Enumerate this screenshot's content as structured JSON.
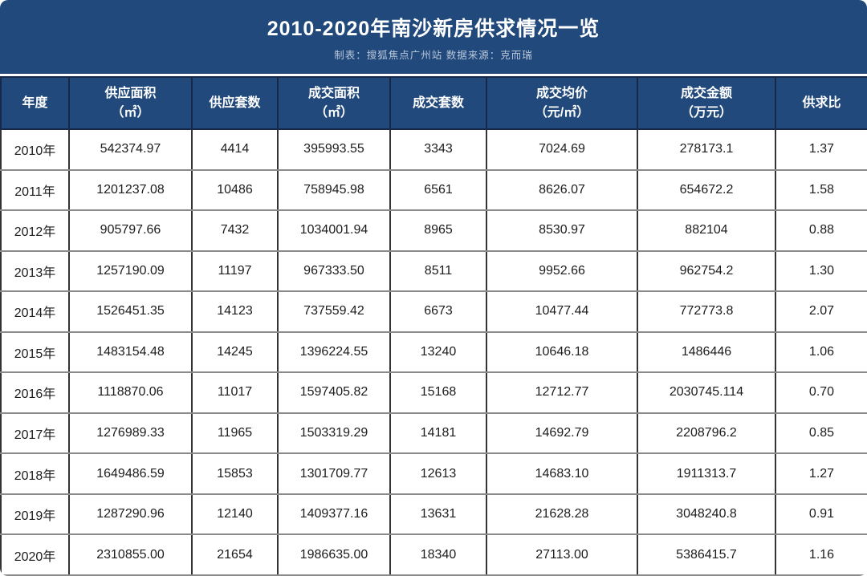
{
  "title": "2010-2020年南沙新房供求情况一览",
  "subtitle": "制表：搜狐焦点广州站  数据来源：克而瑞",
  "colors": {
    "banner_background": "#21497b",
    "header_cell_background": "#21497b",
    "header_border": "#16294a",
    "title_text": "#ffffff",
    "subtitle_text": "#b9c7db",
    "row_horizontal_border": "#8a8a8a",
    "row_vertical_border": "#333333",
    "body_text": "#1c1c1c"
  },
  "table": {
    "headers": [
      "年度",
      "供应面积\n（㎡）",
      "供应套数",
      "成交面积\n（㎡）",
      "成交套数",
      "成交均价\n（元/㎡）",
      "成交金额\n（万元）",
      "供求比"
    ],
    "rows": [
      [
        "2010年",
        "542374.97",
        "4414",
        "395993.55",
        "3343",
        "7024.69",
        "278173.1",
        "1.37"
      ],
      [
        "2011年",
        "1201237.08",
        "10486",
        "758945.98",
        "6561",
        "8626.07",
        "654672.2",
        "1.58"
      ],
      [
        "2012年",
        "905797.66",
        "7432",
        "1034001.94",
        "8965",
        "8530.97",
        "882104",
        "0.88"
      ],
      [
        "2013年",
        "1257190.09",
        "11197",
        "967333.50",
        "8511",
        "9952.66",
        "962754.2",
        "1.30"
      ],
      [
        "2014年",
        "1526451.35",
        "14123",
        "737559.42",
        "6673",
        "10477.44",
        "772773.8",
        "2.07"
      ],
      [
        "2015年",
        "1483154.48",
        "14245",
        "1396224.55",
        "13240",
        "10646.18",
        "1486446",
        "1.06"
      ],
      [
        "2016年",
        "1118870.06",
        "11017",
        "1597405.82",
        "15168",
        "12712.77",
        "2030745.114",
        "0.70"
      ],
      [
        "2017年",
        "1276989.33",
        "11965",
        "1503319.29",
        "14181",
        "14692.79",
        "2208796.2",
        "0.85"
      ],
      [
        "2018年",
        "1649486.59",
        "15853",
        "1301709.77",
        "12613",
        "14683.10",
        "1911313.7",
        "1.27"
      ],
      [
        "2019年",
        "1287290.96",
        "12140",
        "1409377.16",
        "13631",
        "21628.28",
        "3048240.8",
        "0.91"
      ],
      [
        "2020年",
        "2310855.00",
        "21654",
        "1986635.00",
        "18340",
        "27113.00",
        "5386415.7",
        "1.16"
      ]
    ]
  },
  "chart_data": {
    "type": "table",
    "title": "2010-2020年南沙新房供求情况一览",
    "columns": [
      "年度",
      "供应面积（㎡）",
      "供应套数",
      "成交面积（㎡）",
      "成交套数",
      "成交均价（元/㎡）",
      "成交金额（万元）",
      "供求比"
    ],
    "rows": [
      {
        "年度": "2010年",
        "供应面积": 542374.97,
        "供应套数": 4414,
        "成交面积": 395993.55,
        "成交套数": 3343,
        "成交均价": 7024.69,
        "成交金额": 278173.1,
        "供求比": 1.37
      },
      {
        "年度": "2011年",
        "供应面积": 1201237.08,
        "供应套数": 10486,
        "成交面积": 758945.98,
        "成交套数": 6561,
        "成交均价": 8626.07,
        "成交金额": 654672.2,
        "供求比": 1.58
      },
      {
        "年度": "2012年",
        "供应面积": 905797.66,
        "供应套数": 7432,
        "成交面积": 1034001.94,
        "成交套数": 8965,
        "成交均价": 8530.97,
        "成交金额": 882104,
        "供求比": 0.88
      },
      {
        "年度": "2013年",
        "供应面积": 1257190.09,
        "供应套数": 11197,
        "成交面积": 967333.5,
        "成交套数": 8511,
        "成交均价": 9952.66,
        "成交金额": 962754.2,
        "供求比": 1.3
      },
      {
        "年度": "2014年",
        "供应面积": 1526451.35,
        "供应套数": 14123,
        "成交面积": 737559.42,
        "成交套数": 6673,
        "成交均价": 10477.44,
        "成交金额": 772773.8,
        "供求比": 2.07
      },
      {
        "年度": "2015年",
        "供应面积": 1483154.48,
        "供应套数": 14245,
        "成交面积": 1396224.55,
        "成交套数": 13240,
        "成交均价": 10646.18,
        "成交金额": 1486446,
        "供求比": 1.06
      },
      {
        "年度": "2016年",
        "供应面积": 1118870.06,
        "供应套数": 11017,
        "成交面积": 1597405.82,
        "成交套数": 15168,
        "成交均价": 12712.77,
        "成交金额": 2030745.114,
        "供求比": 0.7
      },
      {
        "年度": "2017年",
        "供应面积": 1276989.33,
        "供应套数": 11965,
        "成交面积": 1503319.29,
        "成交套数": 14181,
        "成交均价": 14692.79,
        "成交金额": 2208796.2,
        "供求比": 0.85
      },
      {
        "年度": "2018年",
        "供应面积": 1649486.59,
        "供应套数": 15853,
        "成交面积": 1301709.77,
        "成交套数": 12613,
        "成交均价": 14683.1,
        "成交金额": 1911313.7,
        "供求比": 1.27
      },
      {
        "年度": "2019年",
        "供应面积": 1287290.96,
        "供应套数": 12140,
        "成交面积": 1409377.16,
        "成交套数": 13631,
        "成交均价": 21628.28,
        "成交金额": 3048240.8,
        "供求比": 0.91
      },
      {
        "年度": "2020年",
        "供应面积": 2310855.0,
        "供应套数": 21654,
        "成交面积": 1986635.0,
        "成交套数": 18340,
        "成交均价": 27113.0,
        "成交金额": 5386415.7,
        "供求比": 1.16
      }
    ]
  }
}
